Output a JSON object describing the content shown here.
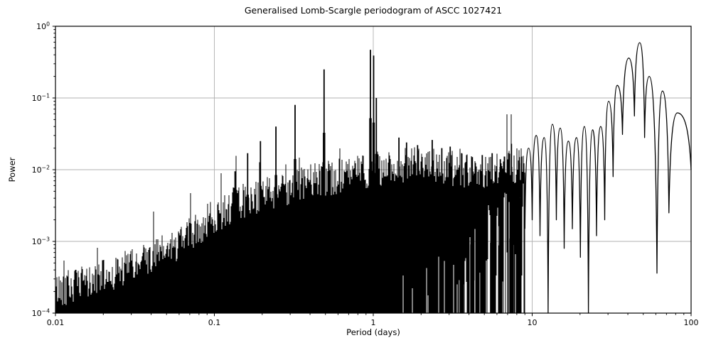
{
  "figure": {
    "background": "#ffffff",
    "line_color": "#000000",
    "grid_color": "#b0b0b0",
    "axis_color": "#000000",
    "tick_label_color": "#000000"
  },
  "chart_data": {
    "type": "line",
    "title": "Generalised Lomb-Scargle periodogram of ASCC 1027421",
    "xlabel": "Period (days)",
    "ylabel": "Power",
    "xscale": "log",
    "yscale": "log",
    "xlim": [
      0.01,
      100
    ],
    "ylim": [
      0.0001,
      1
    ],
    "grid": true,
    "legend": false,
    "x_ticks": [
      {
        "label": "0.01",
        "value": 0.01
      },
      {
        "label": "0.1",
        "value": 0.1
      },
      {
        "label": "1",
        "value": 1
      },
      {
        "label": "10",
        "value": 10
      },
      {
        "label": "100",
        "value": 100
      }
    ],
    "y_ticks": [
      {
        "base": "10",
        "exp": "0",
        "value": 1
      },
      {
        "base": "10",
        "exp": "−1",
        "value": 0.1
      },
      {
        "base": "10",
        "exp": "−2",
        "value": 0.01
      },
      {
        "base": "10",
        "exp": "−3",
        "value": 0.001
      },
      {
        "base": "10",
        "exp": "−4",
        "value": 0.0001
      }
    ],
    "series_color": "#000000",
    "noise_floor": 0.0001,
    "dense_region": [
      0.01,
      9.0
    ],
    "noise_envelope": [
      [
        0.01,
        0.00022
      ],
      [
        0.014,
        0.00026
      ],
      [
        0.02,
        0.00033
      ],
      [
        0.03,
        0.00048
      ],
      [
        0.045,
        0.0007
      ],
      [
        0.06,
        0.001
      ],
      [
        0.08,
        0.0016
      ],
      [
        0.1,
        0.0024
      ],
      [
        0.13,
        0.0034
      ],
      [
        0.18,
        0.0045
      ],
      [
        0.25,
        0.0055
      ],
      [
        0.35,
        0.0065
      ],
      [
        0.5,
        0.008
      ],
      [
        0.7,
        0.009
      ],
      [
        1.0,
        0.0105
      ],
      [
        1.4,
        0.012
      ],
      [
        2.0,
        0.0125
      ],
      [
        2.8,
        0.0115
      ],
      [
        4.0,
        0.01
      ],
      [
        5.5,
        0.0095
      ],
      [
        7.0,
        0.011
      ],
      [
        9.0,
        0.013
      ]
    ],
    "main_peaks": [
      [
        0.135,
        0.0095
      ],
      [
        0.162,
        0.017
      ],
      [
        0.195,
        0.025
      ],
      [
        0.244,
        0.04
      ],
      [
        0.322,
        0.08
      ],
      [
        0.49,
        0.25
      ],
      [
        0.96,
        0.47
      ],
      [
        1.005,
        0.39
      ],
      [
        1.045,
        0.1
      ],
      [
        1.45,
        0.028
      ],
      [
        1.62,
        0.024
      ],
      [
        1.9,
        0.022
      ],
      [
        2.35,
        0.026
      ],
      [
        2.7,
        0.02
      ],
      [
        3.05,
        0.021
      ],
      [
        3.6,
        0.017
      ],
      [
        4.2,
        0.015
      ],
      [
        4.85,
        0.016
      ],
      [
        5.6,
        0.017
      ],
      [
        6.3,
        0.014
      ],
      [
        7.4,
        0.023
      ],
      [
        8.3,
        0.015
      ]
    ],
    "long_period_profile": [
      [
        9.0,
        0.0015
      ],
      [
        9.5,
        0.02
      ],
      [
        10.0,
        0.002
      ],
      [
        10.6,
        0.03
      ],
      [
        11.2,
        0.0012
      ],
      [
        11.9,
        0.028
      ],
      [
        12.6,
        0.0001
      ],
      [
        13.4,
        0.043
      ],
      [
        14.2,
        0.002
      ],
      [
        15.0,
        0.038
      ],
      [
        15.9,
        0.0008
      ],
      [
        16.9,
        0.025
      ],
      [
        17.9,
        0.0015
      ],
      [
        19.0,
        0.028
      ],
      [
        20.1,
        0.0006
      ],
      [
        21.3,
        0.04
      ],
      [
        22.6,
        0.0001
      ],
      [
        24.0,
        0.036
      ],
      [
        25.4,
        0.0012
      ],
      [
        27.0,
        0.04
      ],
      [
        28.6,
        0.002
      ],
      [
        30.3,
        0.09
      ],
      [
        32.3,
        0.008
      ],
      [
        34.3,
        0.15
      ],
      [
        37.0,
        0.031
      ],
      [
        40.5,
        0.36
      ],
      [
        44.0,
        0.056
      ],
      [
        47.5,
        0.59
      ],
      [
        51.0,
        0.028
      ],
      [
        54.5,
        0.2
      ],
      [
        61.0,
        0.00036
      ],
      [
        66.0,
        0.125
      ],
      [
        72.5,
        0.0025
      ],
      [
        82.0,
        0.062
      ],
      [
        100.0,
        0.01
      ]
    ]
  }
}
